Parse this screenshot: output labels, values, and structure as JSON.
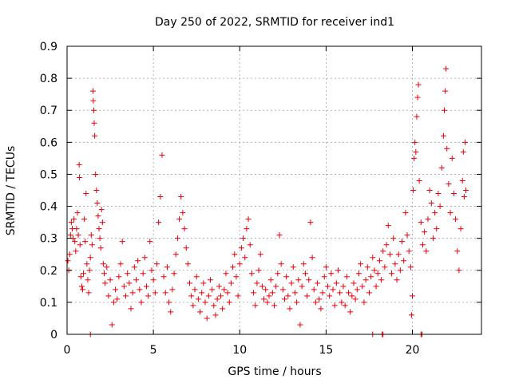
{
  "chart_data": {
    "type": "scatter",
    "title": "Day 250 of 2022, SRMTID for receiver ind1",
    "xlabel": "GPS time / hours",
    "ylabel": "SRMTID / TECUs",
    "xlim": [
      0,
      24
    ],
    "ylim": [
      0,
      0.9
    ],
    "xticks": [
      0,
      5,
      10,
      15,
      20
    ],
    "xtick_labels": [
      "0",
      "5",
      "10",
      "15",
      "20"
    ],
    "yticks": [
      0,
      0.1,
      0.2,
      0.3,
      0.4,
      0.5,
      0.6,
      0.7,
      0.8,
      0.9
    ],
    "ytick_labels": [
      "0",
      "0.1",
      "0.2",
      "0.3",
      "0.4",
      "0.5",
      "0.6",
      "0.7",
      "0.8",
      "0.9"
    ],
    "grid": true,
    "marker": "plus",
    "marker_color": "#e8000b",
    "series": [
      {
        "name": "SRMTID",
        "points": [
          [
            0.05,
            0.23
          ],
          [
            0.1,
            0.2
          ],
          [
            0.15,
            0.25
          ],
          [
            0.2,
            0.31
          ],
          [
            0.25,
            0.35
          ],
          [
            0.3,
            0.33
          ],
          [
            0.35,
            0.3
          ],
          [
            0.4,
            0.36
          ],
          [
            0.45,
            0.29
          ],
          [
            0.5,
            0.26
          ],
          [
            0.55,
            0.33
          ],
          [
            0.6,
            0.38
          ],
          [
            0.65,
            0.31
          ],
          [
            0.7,
            0.53
          ],
          [
            0.72,
            0.49
          ],
          [
            0.75,
            0.28
          ],
          [
            0.8,
            0.18
          ],
          [
            0.85,
            0.15
          ],
          [
            0.9,
            0.14
          ],
          [
            0.95,
            0.19
          ],
          [
            1.0,
            0.36
          ],
          [
            1.05,
            0.29
          ],
          [
            1.1,
            0.44
          ],
          [
            1.15,
            0.22
          ],
          [
            1.2,
            0.17
          ],
          [
            1.25,
            0.13
          ],
          [
            1.3,
            0.2
          ],
          [
            1.35,
            0.24
          ],
          [
            1.4,
            0.31
          ],
          [
            1.45,
            0.28
          ],
          [
            1.5,
            0.76
          ],
          [
            1.52,
            0.73
          ],
          [
            1.55,
            0.7
          ],
          [
            1.57,
            0.66
          ],
          [
            1.6,
            0.62
          ],
          [
            1.65,
            0.5
          ],
          [
            1.7,
            0.45
          ],
          [
            1.75,
            0.41
          ],
          [
            1.8,
            0.37
          ],
          [
            1.85,
            0.33
          ],
          [
            1.9,
            0.3
          ],
          [
            1.95,
            0.27
          ],
          [
            2.0,
            0.39
          ],
          [
            2.05,
            0.35
          ],
          [
            2.1,
            0.22
          ],
          [
            2.15,
            0.19
          ],
          [
            2.2,
            0.16
          ],
          [
            2.3,
            0.21
          ],
          [
            2.4,
            0.12
          ],
          [
            2.5,
            0.17
          ],
          [
            2.6,
            0.03
          ],
          [
            2.7,
            0.1
          ],
          [
            2.8,
            0.14
          ],
          [
            2.9,
            0.11
          ],
          [
            3.0,
            0.18
          ],
          [
            3.1,
            0.22
          ],
          [
            3.2,
            0.29
          ],
          [
            3.3,
            0.15
          ],
          [
            3.4,
            0.12
          ],
          [
            3.5,
            0.19
          ],
          [
            3.6,
            0.16
          ],
          [
            3.7,
            0.08
          ],
          [
            3.8,
            0.13
          ],
          [
            3.9,
            0.21
          ],
          [
            4.0,
            0.17
          ],
          [
            4.1,
            0.23
          ],
          [
            4.2,
            0.14
          ],
          [
            4.3,
            0.1
          ],
          [
            4.4,
            0.19
          ],
          [
            4.5,
            0.24
          ],
          [
            4.6,
            0.15
          ],
          [
            4.7,
            0.12
          ],
          [
            4.8,
            0.29
          ],
          [
            4.9,
            0.2
          ],
          [
            5.0,
            0.17
          ],
          [
            5.1,
            0.13
          ],
          [
            5.2,
            0.22
          ],
          [
            5.3,
            0.35
          ],
          [
            5.4,
            0.43
          ],
          [
            5.5,
            0.56
          ],
          [
            5.6,
            0.18
          ],
          [
            5.7,
            0.13
          ],
          [
            5.8,
            0.21
          ],
          [
            5.9,
            0.1
          ],
          [
            6.0,
            0.07
          ],
          [
            6.1,
            0.14
          ],
          [
            6.2,
            0.19
          ],
          [
            6.3,
            0.25
          ],
          [
            6.4,
            0.3
          ],
          [
            6.5,
            0.36
          ],
          [
            6.6,
            0.43
          ],
          [
            6.7,
            0.38
          ],
          [
            6.8,
            0.33
          ],
          [
            6.9,
            0.27
          ],
          [
            7.0,
            0.22
          ],
          [
            7.1,
            0.16
          ],
          [
            7.2,
            0.12
          ],
          [
            7.3,
            0.09
          ],
          [
            7.4,
            0.14
          ],
          [
            7.5,
            0.18
          ],
          [
            7.6,
            0.11
          ],
          [
            7.7,
            0.07
          ],
          [
            7.8,
            0.13
          ],
          [
            7.9,
            0.16
          ],
          [
            8.0,
            0.1
          ],
          [
            8.1,
            0.05
          ],
          [
            8.2,
            0.12
          ],
          [
            8.3,
            0.17
          ],
          [
            8.4,
            0.14
          ],
          [
            8.5,
            0.09
          ],
          [
            8.6,
            0.06
          ],
          [
            8.7,
            0.11
          ],
          [
            8.8,
            0.15
          ],
          [
            8.9,
            0.12
          ],
          [
            9.0,
            0.08
          ],
          [
            9.1,
            0.14
          ],
          [
            9.2,
            0.19
          ],
          [
            9.3,
            0.13
          ],
          [
            9.4,
            0.1
          ],
          [
            9.5,
            0.16
          ],
          [
            9.6,
            0.21
          ],
          [
            9.7,
            0.25
          ],
          [
            9.8,
            0.18
          ],
          [
            9.9,
            0.12
          ],
          [
            10.0,
            0.22
          ],
          [
            10.1,
            0.27
          ],
          [
            10.2,
            0.3
          ],
          [
            10.3,
            0.24
          ],
          [
            10.4,
            0.33
          ],
          [
            10.5,
            0.36
          ],
          [
            10.6,
            0.28
          ],
          [
            10.7,
            0.19
          ],
          [
            10.8,
            0.13
          ],
          [
            10.9,
            0.09
          ],
          [
            11.0,
            0.16
          ],
          [
            11.1,
            0.2
          ],
          [
            11.2,
            0.25
          ],
          [
            11.3,
            0.15
          ],
          [
            11.4,
            0.11
          ],
          [
            11.5,
            0.14
          ],
          [
            11.6,
            0.1
          ],
          [
            11.7,
            0.12
          ],
          [
            11.8,
            0.17
          ],
          [
            11.9,
            0.13
          ],
          [
            12.0,
            0.09
          ],
          [
            12.1,
            0.15
          ],
          [
            12.2,
            0.19
          ],
          [
            12.3,
            0.31
          ],
          [
            12.4,
            0.22
          ],
          [
            12.5,
            0.14
          ],
          [
            12.6,
            0.11
          ],
          [
            12.7,
            0.18
          ],
          [
            12.8,
            0.12
          ],
          [
            12.9,
            0.08
          ],
          [
            13.0,
            0.16
          ],
          [
            13.1,
            0.21
          ],
          [
            13.2,
            0.13
          ],
          [
            13.3,
            0.1
          ],
          [
            13.4,
            0.17
          ],
          [
            13.5,
            0.03
          ],
          [
            13.6,
            0.15
          ],
          [
            13.7,
            0.22
          ],
          [
            13.8,
            0.19
          ],
          [
            13.9,
            0.12
          ],
          [
            14.0,
            0.17
          ],
          [
            14.1,
            0.35
          ],
          [
            14.2,
            0.24
          ],
          [
            14.3,
            0.14
          ],
          [
            14.4,
            0.1
          ],
          [
            14.5,
            0.16
          ],
          [
            14.6,
            0.11
          ],
          [
            14.7,
            0.08
          ],
          [
            14.8,
            0.13
          ],
          [
            14.9,
            0.18
          ],
          [
            15.0,
            0.21
          ],
          [
            15.1,
            0.15
          ],
          [
            15.2,
            0.12
          ],
          [
            15.3,
            0.19
          ],
          [
            15.4,
            0.14
          ],
          [
            15.5,
            0.09
          ],
          [
            15.6,
            0.16
          ],
          [
            15.7,
            0.2
          ],
          [
            15.8,
            0.13
          ],
          [
            15.9,
            0.1
          ],
          [
            16.0,
            0.15
          ],
          [
            16.1,
            0.09
          ],
          [
            16.2,
            0.18
          ],
          [
            16.3,
            0.13
          ],
          [
            16.4,
            0.07
          ],
          [
            16.5,
            0.12
          ],
          [
            16.6,
            0.16
          ],
          [
            16.7,
            0.11
          ],
          [
            16.8,
            0.14
          ],
          [
            16.9,
            0.19
          ],
          [
            17.0,
            0.22
          ],
          [
            17.1,
            0.15
          ],
          [
            17.2,
            0.1
          ],
          [
            17.3,
            0.17
          ],
          [
            17.4,
            0.21
          ],
          [
            17.5,
            0.13
          ],
          [
            17.6,
            0.18
          ],
          [
            17.7,
            0.24
          ],
          [
            17.8,
            0.2
          ],
          [
            17.9,
            0.15
          ],
          [
            18.0,
            0.19
          ],
          [
            18.1,
            0.23
          ],
          [
            18.2,
            0.17
          ],
          [
            18.3,
            0.26
          ],
          [
            18.4,
            0.21
          ],
          [
            18.5,
            0.28
          ],
          [
            18.6,
            0.34
          ],
          [
            18.7,
            0.25
          ],
          [
            18.8,
            0.19
          ],
          [
            18.9,
            0.3
          ],
          [
            19.0,
            0.22
          ],
          [
            19.1,
            0.17
          ],
          [
            19.2,
            0.25
          ],
          [
            19.3,
            0.2
          ],
          [
            19.4,
            0.29
          ],
          [
            19.5,
            0.23
          ],
          [
            19.6,
            0.38
          ],
          [
            19.7,
            0.31
          ],
          [
            19.8,
            0.26
          ],
          [
            19.9,
            0.21
          ],
          [
            19.95,
            0.06
          ],
          [
            20.0,
            0.12
          ],
          [
            20.05,
            0.45
          ],
          [
            20.1,
            0.55
          ],
          [
            20.15,
            0.6
          ],
          [
            20.2,
            0.57
          ],
          [
            20.25,
            0.68
          ],
          [
            20.3,
            0.74
          ],
          [
            20.35,
            0.78
          ],
          [
            20.4,
            0.48
          ],
          [
            20.5,
            0.35
          ],
          [
            20.6,
            0.28
          ],
          [
            20.7,
            0.32
          ],
          [
            20.8,
            0.26
          ],
          [
            20.9,
            0.36
          ],
          [
            21.0,
            0.45
          ],
          [
            21.1,
            0.41
          ],
          [
            21.2,
            0.3
          ],
          [
            21.3,
            0.38
          ],
          [
            21.4,
            0.33
          ],
          [
            21.5,
            0.44
          ],
          [
            21.6,
            0.4
          ],
          [
            21.7,
            0.52
          ],
          [
            21.8,
            0.62
          ],
          [
            21.85,
            0.7
          ],
          [
            21.9,
            0.76
          ],
          [
            21.95,
            0.83
          ],
          [
            22.0,
            0.58
          ],
          [
            22.1,
            0.47
          ],
          [
            22.2,
            0.38
          ],
          [
            22.3,
            0.55
          ],
          [
            22.4,
            0.44
          ],
          [
            22.5,
            0.36
          ],
          [
            22.6,
            0.26
          ],
          [
            22.7,
            0.2
          ],
          [
            22.8,
            0.33
          ],
          [
            22.9,
            0.48
          ],
          [
            22.95,
            0.57
          ],
          [
            23.0,
            0.43
          ],
          [
            23.05,
            0.6
          ],
          [
            23.1,
            0.45
          ],
          [
            1.35,
            0.0
          ],
          [
            17.7,
            0.0
          ],
          [
            18.25,
            0.0
          ],
          [
            18.3,
            0.0
          ],
          [
            20.5,
            0.0
          ],
          [
            20.55,
            0.0
          ]
        ]
      }
    ]
  }
}
